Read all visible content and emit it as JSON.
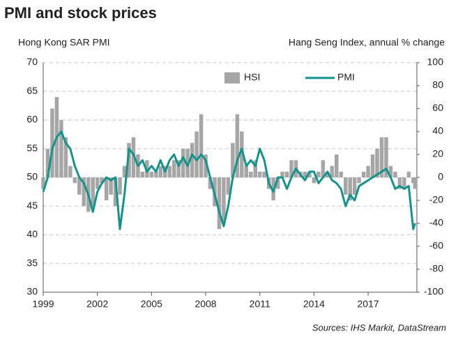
{
  "chart_data": {
    "type": "bar-line",
    "title": "PMI and stock prices",
    "y_label": "Hong Kong SAR PMI",
    "y2_label": "Hang Seng Index, annual % change",
    "source": "Sources: IHS Markit, DataStream",
    "x": [
      1999.0,
      1999.25,
      1999.5,
      1999.75,
      2000.0,
      2000.25,
      2000.5,
      2000.75,
      2001.0,
      2001.25,
      2001.5,
      2001.75,
      2002.0,
      2002.25,
      2002.5,
      2002.75,
      2003.0,
      2003.25,
      2003.5,
      2003.75,
      2004.0,
      2004.25,
      2004.5,
      2004.75,
      2005.0,
      2005.25,
      2005.5,
      2005.75,
      2006.0,
      2006.25,
      2006.5,
      2006.75,
      2007.0,
      2007.25,
      2007.5,
      2007.75,
      2008.0,
      2008.25,
      2008.5,
      2008.75,
      2009.0,
      2009.25,
      2009.5,
      2009.75,
      2010.0,
      2010.25,
      2010.5,
      2010.75,
      2011.0,
      2011.25,
      2011.5,
      2011.75,
      2012.0,
      2012.25,
      2012.5,
      2012.75,
      2013.0,
      2013.25,
      2013.5,
      2013.75,
      2014.0,
      2014.25,
      2014.5,
      2014.75,
      2015.0,
      2015.25,
      2015.5,
      2015.75,
      2016.0,
      2016.25,
      2016.5,
      2016.75,
      2017.0,
      2017.25,
      2017.5,
      2017.75,
      2018.0,
      2018.25,
      2018.5,
      2018.75,
      2019.0,
      2019.25,
      2019.5,
      2019.6
    ],
    "series": [
      {
        "name": "HSI",
        "type": "bar",
        "axis": "y2",
        "color": "#a6a6a6",
        "values": [
          -10,
          25,
          60,
          70,
          50,
          35,
          10,
          -5,
          -15,
          -25,
          -30,
          -25,
          -10,
          -5,
          -20,
          -15,
          -25,
          -15,
          10,
          30,
          35,
          20,
          5,
          15,
          5,
          5,
          10,
          10,
          10,
          15,
          15,
          25,
          25,
          30,
          40,
          55,
          20,
          -10,
          -25,
          -45,
          -40,
          -15,
          30,
          55,
          40,
          10,
          5,
          15,
          5,
          5,
          -10,
          -20,
          -10,
          5,
          5,
          15,
          15,
          5,
          5,
          5,
          -5,
          5,
          15,
          5,
          10,
          20,
          5,
          -15,
          -20,
          -15,
          -5,
          5,
          10,
          20,
          25,
          35,
          35,
          10,
          5,
          -10,
          -10,
          5,
          -5,
          -10
        ]
      },
      {
        "name": "PMI",
        "type": "line",
        "axis": "y",
        "color": "#13948b",
        "values": [
          47.5,
          50,
          55,
          57,
          58,
          56,
          55,
          52,
          50,
          49,
          47,
          44,
          47.5,
          49,
          50,
          49.5,
          50,
          41,
          47,
          55,
          54,
          52,
          53,
          51,
          52,
          51,
          53,
          51,
          53,
          54,
          52,
          53.5,
          52,
          54,
          53,
          54,
          53,
          50,
          47,
          44,
          41.5,
          45,
          50,
          53,
          55,
          52,
          53,
          52,
          55,
          53,
          49,
          47.5,
          50,
          50,
          48,
          50,
          51.5,
          50.5,
          49.5,
          51,
          51,
          49,
          50,
          51,
          49.5,
          49,
          48,
          45,
          47,
          46,
          48.5,
          49,
          49.5,
          50,
          50.5,
          51,
          51.5,
          50,
          48,
          48.5,
          48,
          48.5,
          41,
          42
        ]
      }
    ],
    "xlim": [
      1999,
      2019.7
    ],
    "xticks": [
      1999,
      2002,
      2005,
      2008,
      2011,
      2014,
      2017
    ],
    "ylim": [
      30,
      70
    ],
    "yticks": [
      30,
      35,
      40,
      45,
      50,
      55,
      60,
      65,
      70
    ],
    "y2lim": [
      -100,
      100
    ],
    "y2ticks": [
      -100,
      -80,
      -60,
      -40,
      -20,
      0,
      20,
      40,
      60,
      80,
      100
    ],
    "grid": true
  }
}
